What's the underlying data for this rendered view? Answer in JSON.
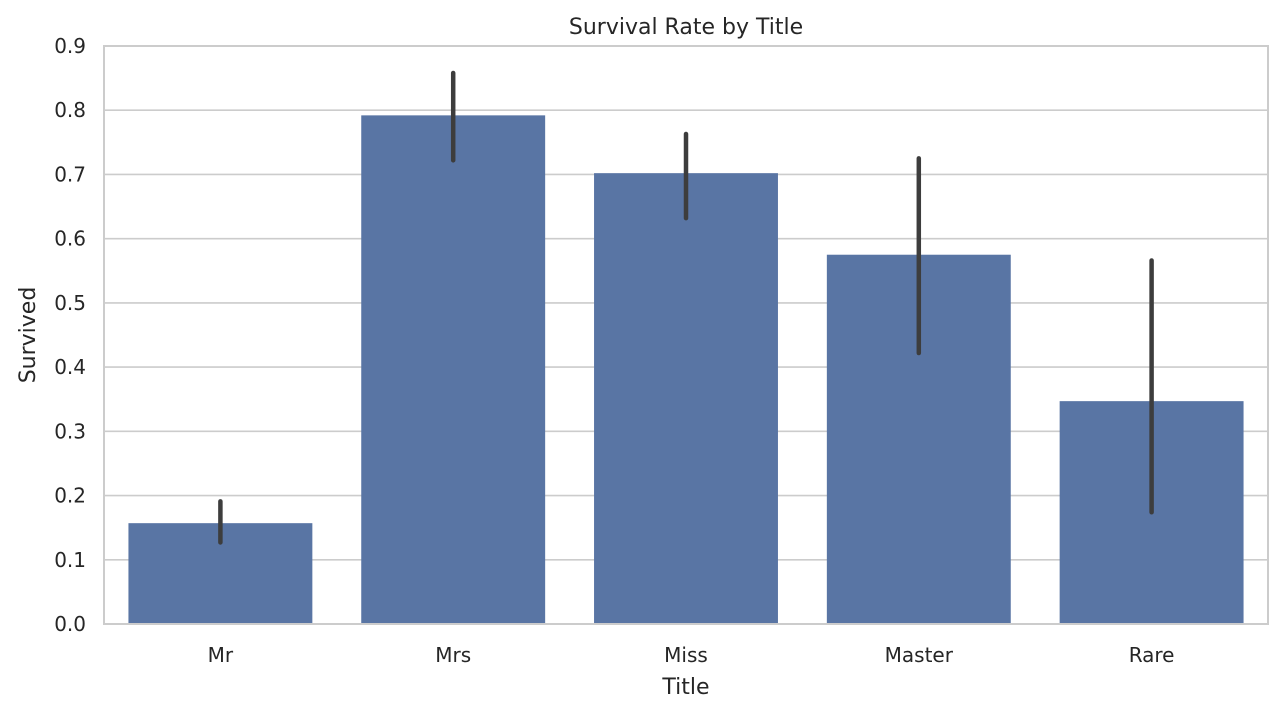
{
  "chart_data": {
    "type": "bar",
    "title": "Survival Rate by Title",
    "xlabel": "Title",
    "ylabel": "Survived",
    "categories": [
      "Mr",
      "Mrs",
      "Miss",
      "Master",
      "Rare"
    ],
    "values": [
      0.157,
      0.792,
      0.702,
      0.575,
      0.347
    ],
    "error_low": [
      0.127,
      0.722,
      0.632,
      0.422,
      0.174
    ],
    "error_high": [
      0.191,
      0.858,
      0.763,
      0.725,
      0.566
    ],
    "ylim": [
      0.0,
      0.9
    ],
    "yticks": [
      "0.0",
      "0.1",
      "0.2",
      "0.3",
      "0.4",
      "0.5",
      "0.6",
      "0.7",
      "0.8",
      "0.9"
    ],
    "grid": true,
    "bar_color": "#5975a4",
    "error_color": "#3d3d3d"
  }
}
